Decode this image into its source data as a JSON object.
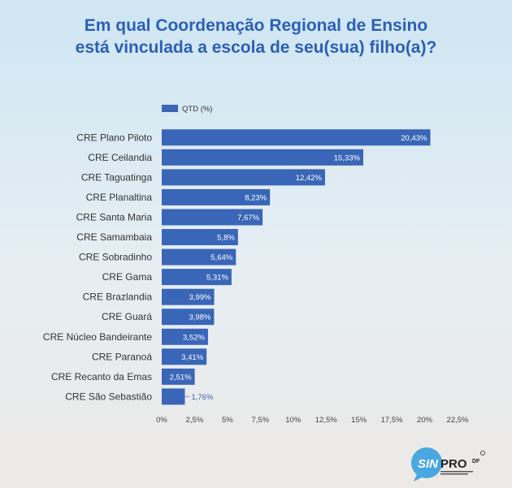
{
  "title_lines": [
    "Em qual Coordenação Regional de Ensino",
    "está vinculada a escola de seu(sua) filho(a)?"
  ],
  "logo": {
    "text": "SINPRO",
    "suffix": "DF"
  },
  "chart_data": {
    "type": "bar",
    "orientation": "horizontal",
    "legend": "top-left",
    "grid": false,
    "categories": [
      "CRE Plano Piloto",
      "CRE Ceilandia",
      "CRE Taguatinga",
      "CRE Planaltina",
      "CRE Santa Maria",
      "CRE Samambaia",
      "CRE Sobradinho",
      "CRE Gama",
      "CRE Brazlandia",
      "CRE Guará",
      "CRE Núcleo Bandeirante",
      "CRE Paranoá",
      "CRE Recanto da Emas",
      "CRE São Sebastião"
    ],
    "series": [
      {
        "name": "QTD (%)",
        "values": [
          20.43,
          15.33,
          12.42,
          8.23,
          7.67,
          5.8,
          5.64,
          5.31,
          3.99,
          3.98,
          3.52,
          3.41,
          2.51,
          1.76
        ],
        "labels": [
          "20,43%",
          "15,33%",
          "12,42%",
          "8,23%",
          "7,67%",
          "5,8%",
          "5,64%",
          "5,31%",
          "3,99%",
          "3,98%",
          "3,52%",
          "3,41%",
          "2,51%",
          "1,76%"
        ]
      }
    ],
    "xlim": [
      0,
      22.5
    ],
    "xticks": [
      0,
      2.5,
      5,
      7.5,
      10,
      12.5,
      15,
      17.5,
      20,
      22.5
    ],
    "xtick_labels": [
      "0%",
      "2,5%",
      "5%",
      "7,5%",
      "10%",
      "12,5%",
      "15%",
      "17,5%",
      "20%",
      "22,5%"
    ],
    "bar_color": "#3a66b8"
  }
}
